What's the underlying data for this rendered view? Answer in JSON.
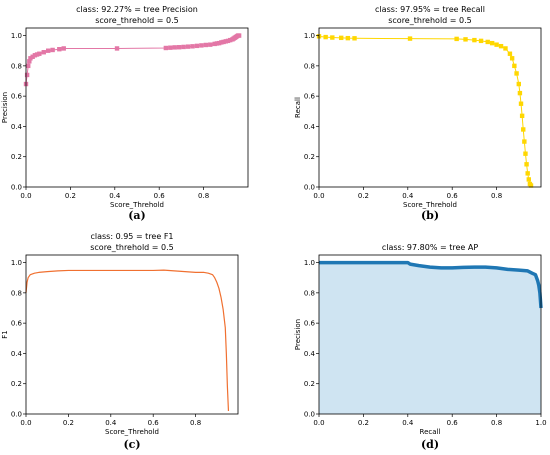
{
  "chart_data": [
    {
      "id": "a",
      "type": "line",
      "title_line1": "class: 92.27% = tree Precision",
      "title_line2": "score_threhold = 0.5",
      "xlabel": "Score_Threhold",
      "ylabel": "Precision",
      "xlim": [
        0,
        1
      ],
      "ylim": [
        0,
        1.05
      ],
      "xticks": [
        0.0,
        0.2,
        0.4,
        0.6,
        0.8
      ],
      "xtick_labels": [
        "0.0",
        "0.2",
        "0.4",
        "0.6",
        "0.8"
      ],
      "yticks": [
        0.0,
        0.2,
        0.4,
        0.6,
        0.8,
        1.0
      ],
      "ytick_labels": [
        "0.0",
        "0.2",
        "0.4",
        "0.6",
        "0.8",
        "1.0"
      ],
      "color": "#e377a6",
      "marker": "square",
      "fill": false,
      "caption": "(a)",
      "series": [
        {
          "x": [
            0.0,
            0.005,
            0.01,
            0.015,
            0.02,
            0.03,
            0.04,
            0.05,
            0.06,
            0.08,
            0.1,
            0.12,
            0.15,
            0.17,
            0.41,
            0.63,
            0.65,
            0.67,
            0.69,
            0.71,
            0.73,
            0.75,
            0.77,
            0.79,
            0.81,
            0.83,
            0.85,
            0.86,
            0.87,
            0.88,
            0.89,
            0.9,
            0.91,
            0.92,
            0.93,
            0.935,
            0.94,
            0.945,
            0.95,
            0.955,
            0.96
          ],
          "y": [
            0.68,
            0.74,
            0.8,
            0.83,
            0.85,
            0.86,
            0.87,
            0.875,
            0.88,
            0.89,
            0.9,
            0.905,
            0.91,
            0.915,
            0.915,
            0.918,
            0.92,
            0.922,
            0.923,
            0.925,
            0.927,
            0.929,
            0.932,
            0.935,
            0.938,
            0.94,
            0.945,
            0.948,
            0.95,
            0.955,
            0.958,
            0.962,
            0.965,
            0.97,
            0.975,
            0.98,
            0.985,
            0.99,
            0.995,
            1.0,
            1.0
          ]
        }
      ]
    },
    {
      "id": "b",
      "type": "line",
      "title_line1": "class: 97.95% = tree Recall",
      "title_line2": "score_threhold = 0.5",
      "xlabel": "Score_Threhold",
      "ylabel": "Recall",
      "xlim": [
        0,
        1
      ],
      "ylim": [
        0,
        1.05
      ],
      "xticks": [
        0.0,
        0.2,
        0.4,
        0.6,
        0.8
      ],
      "xtick_labels": [
        "0.0",
        "0.2",
        "0.4",
        "0.6",
        "0.8"
      ],
      "yticks": [
        0.0,
        0.2,
        0.4,
        0.6,
        0.8,
        1.0
      ],
      "ytick_labels": [
        "0.0",
        "0.2",
        "0.4",
        "0.6",
        "0.8",
        "1.0"
      ],
      "color": "#ffd700",
      "marker": "square",
      "fill": false,
      "caption": "(b)",
      "series": [
        {
          "x": [
            0.0,
            0.03,
            0.06,
            0.1,
            0.13,
            0.16,
            0.41,
            0.62,
            0.66,
            0.7,
            0.73,
            0.76,
            0.78,
            0.8,
            0.82,
            0.84,
            0.86,
            0.87,
            0.88,
            0.89,
            0.9,
            0.905,
            0.91,
            0.915,
            0.92,
            0.925,
            0.93,
            0.935,
            0.94,
            0.945,
            0.95,
            0.955
          ],
          "y": [
            0.995,
            0.99,
            0.987,
            0.985,
            0.983,
            0.982,
            0.98,
            0.978,
            0.975,
            0.97,
            0.965,
            0.958,
            0.95,
            0.94,
            0.93,
            0.915,
            0.88,
            0.85,
            0.8,
            0.75,
            0.68,
            0.62,
            0.55,
            0.47,
            0.38,
            0.3,
            0.22,
            0.15,
            0.09,
            0.05,
            0.02,
            0.01
          ]
        }
      ]
    },
    {
      "id": "c",
      "type": "line",
      "title_line1": "class: 0.95 = tree F1",
      "title_line2": "score_threhold = 0.5",
      "xlabel": "Score_Threhold",
      "ylabel": "F1",
      "xlim": [
        0,
        1
      ],
      "ylim": [
        0,
        1.05
      ],
      "xticks": [
        0.0,
        0.2,
        0.4,
        0.6,
        0.8
      ],
      "xtick_labels": [
        "0.0",
        "0.2",
        "0.4",
        "0.6",
        "0.8"
      ],
      "yticks": [
        0.0,
        0.2,
        0.4,
        0.6,
        0.8,
        1.0
      ],
      "ytick_labels": [
        "0.0",
        "0.2",
        "0.4",
        "0.6",
        "0.8",
        "1.0"
      ],
      "color": "#f07030",
      "marker": "none",
      "fill": false,
      "caption": "(c)",
      "series": [
        {
          "x": [
            0.0,
            0.005,
            0.01,
            0.02,
            0.04,
            0.06,
            0.1,
            0.15,
            0.2,
            0.3,
            0.4,
            0.5,
            0.6,
            0.65,
            0.7,
            0.75,
            0.8,
            0.84,
            0.86,
            0.88,
            0.89,
            0.9,
            0.91,
            0.92,
            0.93,
            0.94,
            0.945,
            0.95,
            0.955
          ],
          "y": [
            0.8,
            0.87,
            0.9,
            0.92,
            0.93,
            0.935,
            0.94,
            0.945,
            0.948,
            0.948,
            0.948,
            0.948,
            0.948,
            0.95,
            0.945,
            0.94,
            0.935,
            0.935,
            0.93,
            0.92,
            0.9,
            0.87,
            0.83,
            0.77,
            0.69,
            0.57,
            0.4,
            0.18,
            0.02
          ]
        }
      ]
    },
    {
      "id": "d",
      "type": "area",
      "title_line1": "class: 97.80% = tree AP",
      "title_line2": "",
      "xlabel": "Recall",
      "ylabel": "Precision",
      "xlim": [
        0,
        1
      ],
      "ylim": [
        0,
        1.05
      ],
      "xticks": [
        0.0,
        0.2,
        0.4,
        0.6,
        0.8,
        1.0
      ],
      "xtick_labels": [
        "0.0",
        "0.2",
        "0.4",
        "0.6",
        "0.8",
        "1.0"
      ],
      "yticks": [
        0.0,
        0.2,
        0.4,
        0.6,
        0.8,
        1.0
      ],
      "ytick_labels": [
        "0.0",
        "0.2",
        "0.4",
        "0.6",
        "0.8",
        "1.0"
      ],
      "color": "#1f77b4",
      "fill_color": "#cfe4f2",
      "marker": "none",
      "fill": true,
      "caption": "(d)",
      "series": [
        {
          "x": [
            0.0,
            0.1,
            0.2,
            0.3,
            0.4,
            0.41,
            0.45,
            0.5,
            0.55,
            0.6,
            0.65,
            0.7,
            0.75,
            0.8,
            0.85,
            0.9,
            0.94,
            0.96,
            0.975,
            0.98,
            0.985,
            0.99,
            0.995,
            1.0
          ],
          "y": [
            1.0,
            1.0,
            1.0,
            1.0,
            1.0,
            0.99,
            0.98,
            0.97,
            0.965,
            0.965,
            0.968,
            0.97,
            0.97,
            0.965,
            0.955,
            0.95,
            0.945,
            0.93,
            0.92,
            0.9,
            0.88,
            0.85,
            0.8,
            0.7
          ]
        }
      ]
    }
  ]
}
